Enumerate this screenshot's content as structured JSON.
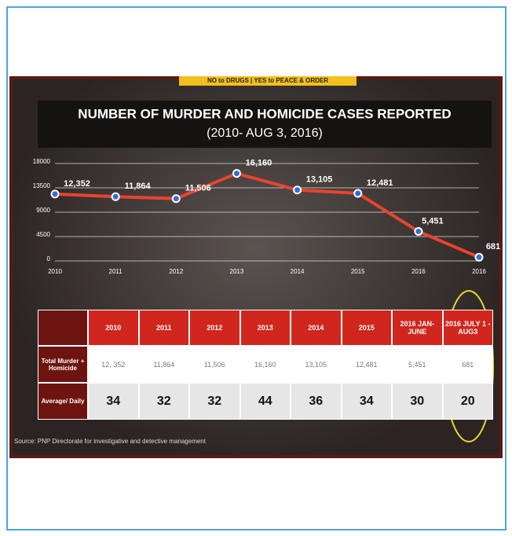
{
  "banner": "NO to DRUGS | YES to PEACE & ORDER",
  "chart_data": {
    "type": "line",
    "title": "NUMBER OF MURDER AND HOMICIDE CASES REPORTED",
    "subtitle": "(2010- AUG 3, 2016)",
    "categories": [
      "2010",
      "2011",
      "2012",
      "2013",
      "2014",
      "2015",
      "2016",
      "2016"
    ],
    "values": [
      12352,
      11864,
      11506,
      16160,
      13105,
      12481,
      5451,
      681
    ],
    "value_labels": [
      "12,352",
      "11,864",
      "11,506",
      "16,160",
      "13,105",
      "12,481",
      "5,451",
      "681"
    ],
    "color": "#e8442f",
    "ylim": [
      0,
      18000
    ],
    "yticks": [
      0,
      4500,
      9000,
      13500,
      18000
    ],
    "grid": true
  },
  "table": {
    "header": [
      "",
      "2010",
      "2011",
      "2012",
      "2013",
      "2014",
      "2015",
      "2016 JAN-JUNE",
      "2016 JULY 1 - AUG3"
    ],
    "rows": [
      [
        "Total Murder + Homicide",
        "12, 352",
        "11,864",
        "11,506",
        "16,160",
        "13,105",
        "12,481",
        "5,451",
        "681"
      ],
      [
        "Average/ Daily",
        "34",
        "32",
        "32",
        "44",
        "36",
        "34",
        "30",
        "20"
      ]
    ]
  },
  "source": "Source: PNP Directorate for investigative and detective management"
}
